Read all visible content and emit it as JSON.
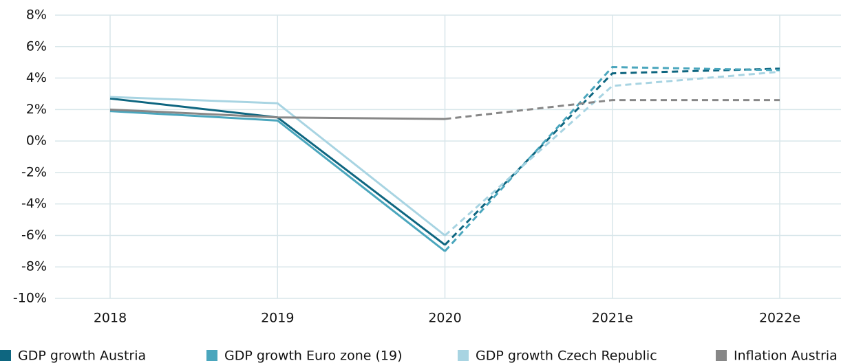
{
  "chart_data": {
    "type": "line",
    "categories": [
      "2018",
      "2019",
      "2020",
      "2021e",
      "2022e"
    ],
    "forecast_start": "2020",
    "series": [
      {
        "name": "GDP growth Austria",
        "color": "#0e6680",
        "values": [
          2.7,
          1.5,
          -6.6,
          4.3,
          4.6
        ]
      },
      {
        "name": "GDP growth Euro zone (19)",
        "color": "#4aa6bd",
        "values": [
          1.9,
          1.3,
          -7.0,
          4.7,
          4.5
        ]
      },
      {
        "name": "GDP growth Czech Republic",
        "color": "#a8d4e2",
        "values": [
          2.8,
          2.4,
          -6.0,
          3.5,
          4.4
        ]
      },
      {
        "name": "Inflation Austria",
        "color": "#878787",
        "values": [
          2.0,
          1.5,
          1.4,
          2.6,
          2.6
        ]
      }
    ],
    "ylim": [
      -10,
      8
    ],
    "yticks": [
      {
        "value": -10,
        "label": "-10%"
      },
      {
        "value": -8,
        "label": "-8%"
      },
      {
        "value": -6,
        "label": "-6%"
      },
      {
        "value": -4,
        "label": "-4%"
      },
      {
        "value": -2,
        "label": "-2%"
      },
      {
        "value": 0,
        "label": "0%"
      },
      {
        "value": 2,
        "label": "2%"
      },
      {
        "value": 4,
        "label": "4%"
      },
      {
        "value": 6,
        "label": "6%"
      },
      {
        "value": 8,
        "label": "8%"
      }
    ],
    "grid": true
  }
}
